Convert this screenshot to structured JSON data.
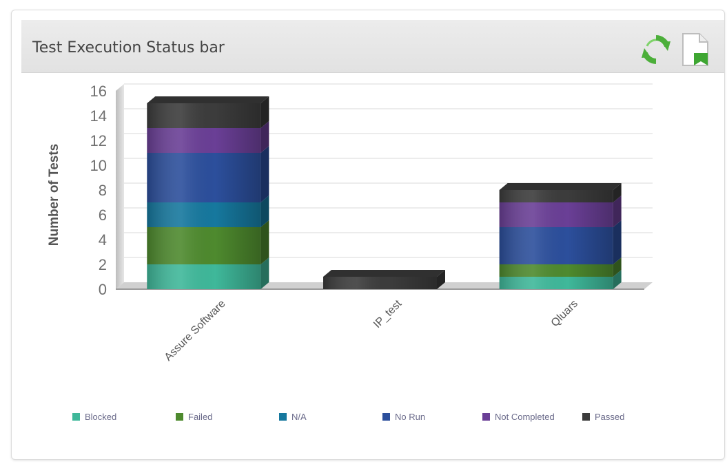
{
  "panel": {
    "title": "Test Execution Status bar",
    "refresh_icon": "refresh-icon",
    "export_icon": "export-document-icon"
  },
  "chart_data": {
    "type": "bar",
    "stacked": true,
    "three_d": true,
    "title": "",
    "xlabel": "",
    "ylabel": "Number of Tests",
    "ylim": [
      0,
      16
    ],
    "yticks": [
      "0",
      "2",
      "4",
      "6",
      "8",
      "10",
      "12",
      "14",
      "16"
    ],
    "grid": true,
    "legend_position": "bottom",
    "categories": [
      "Assure Software",
      "IP_test",
      "Qluars"
    ],
    "series": [
      {
        "name": "Blocked",
        "color": "#3fb89a",
        "values": [
          2,
          0,
          1
        ]
      },
      {
        "name": "Failed",
        "color": "#4e8a2e",
        "values": [
          3,
          0,
          1
        ]
      },
      {
        "name": "N/A",
        "color": "#16789e",
        "values": [
          2,
          0,
          0
        ]
      },
      {
        "name": "No Run",
        "color": "#2c4f9c",
        "values": [
          4,
          0,
          3
        ]
      },
      {
        "name": "Not Completed",
        "color": "#6a3f96",
        "values": [
          2,
          0,
          2
        ]
      },
      {
        "name": "Passed",
        "color": "#3c3c3c",
        "values": [
          2,
          1,
          1
        ]
      }
    ]
  }
}
